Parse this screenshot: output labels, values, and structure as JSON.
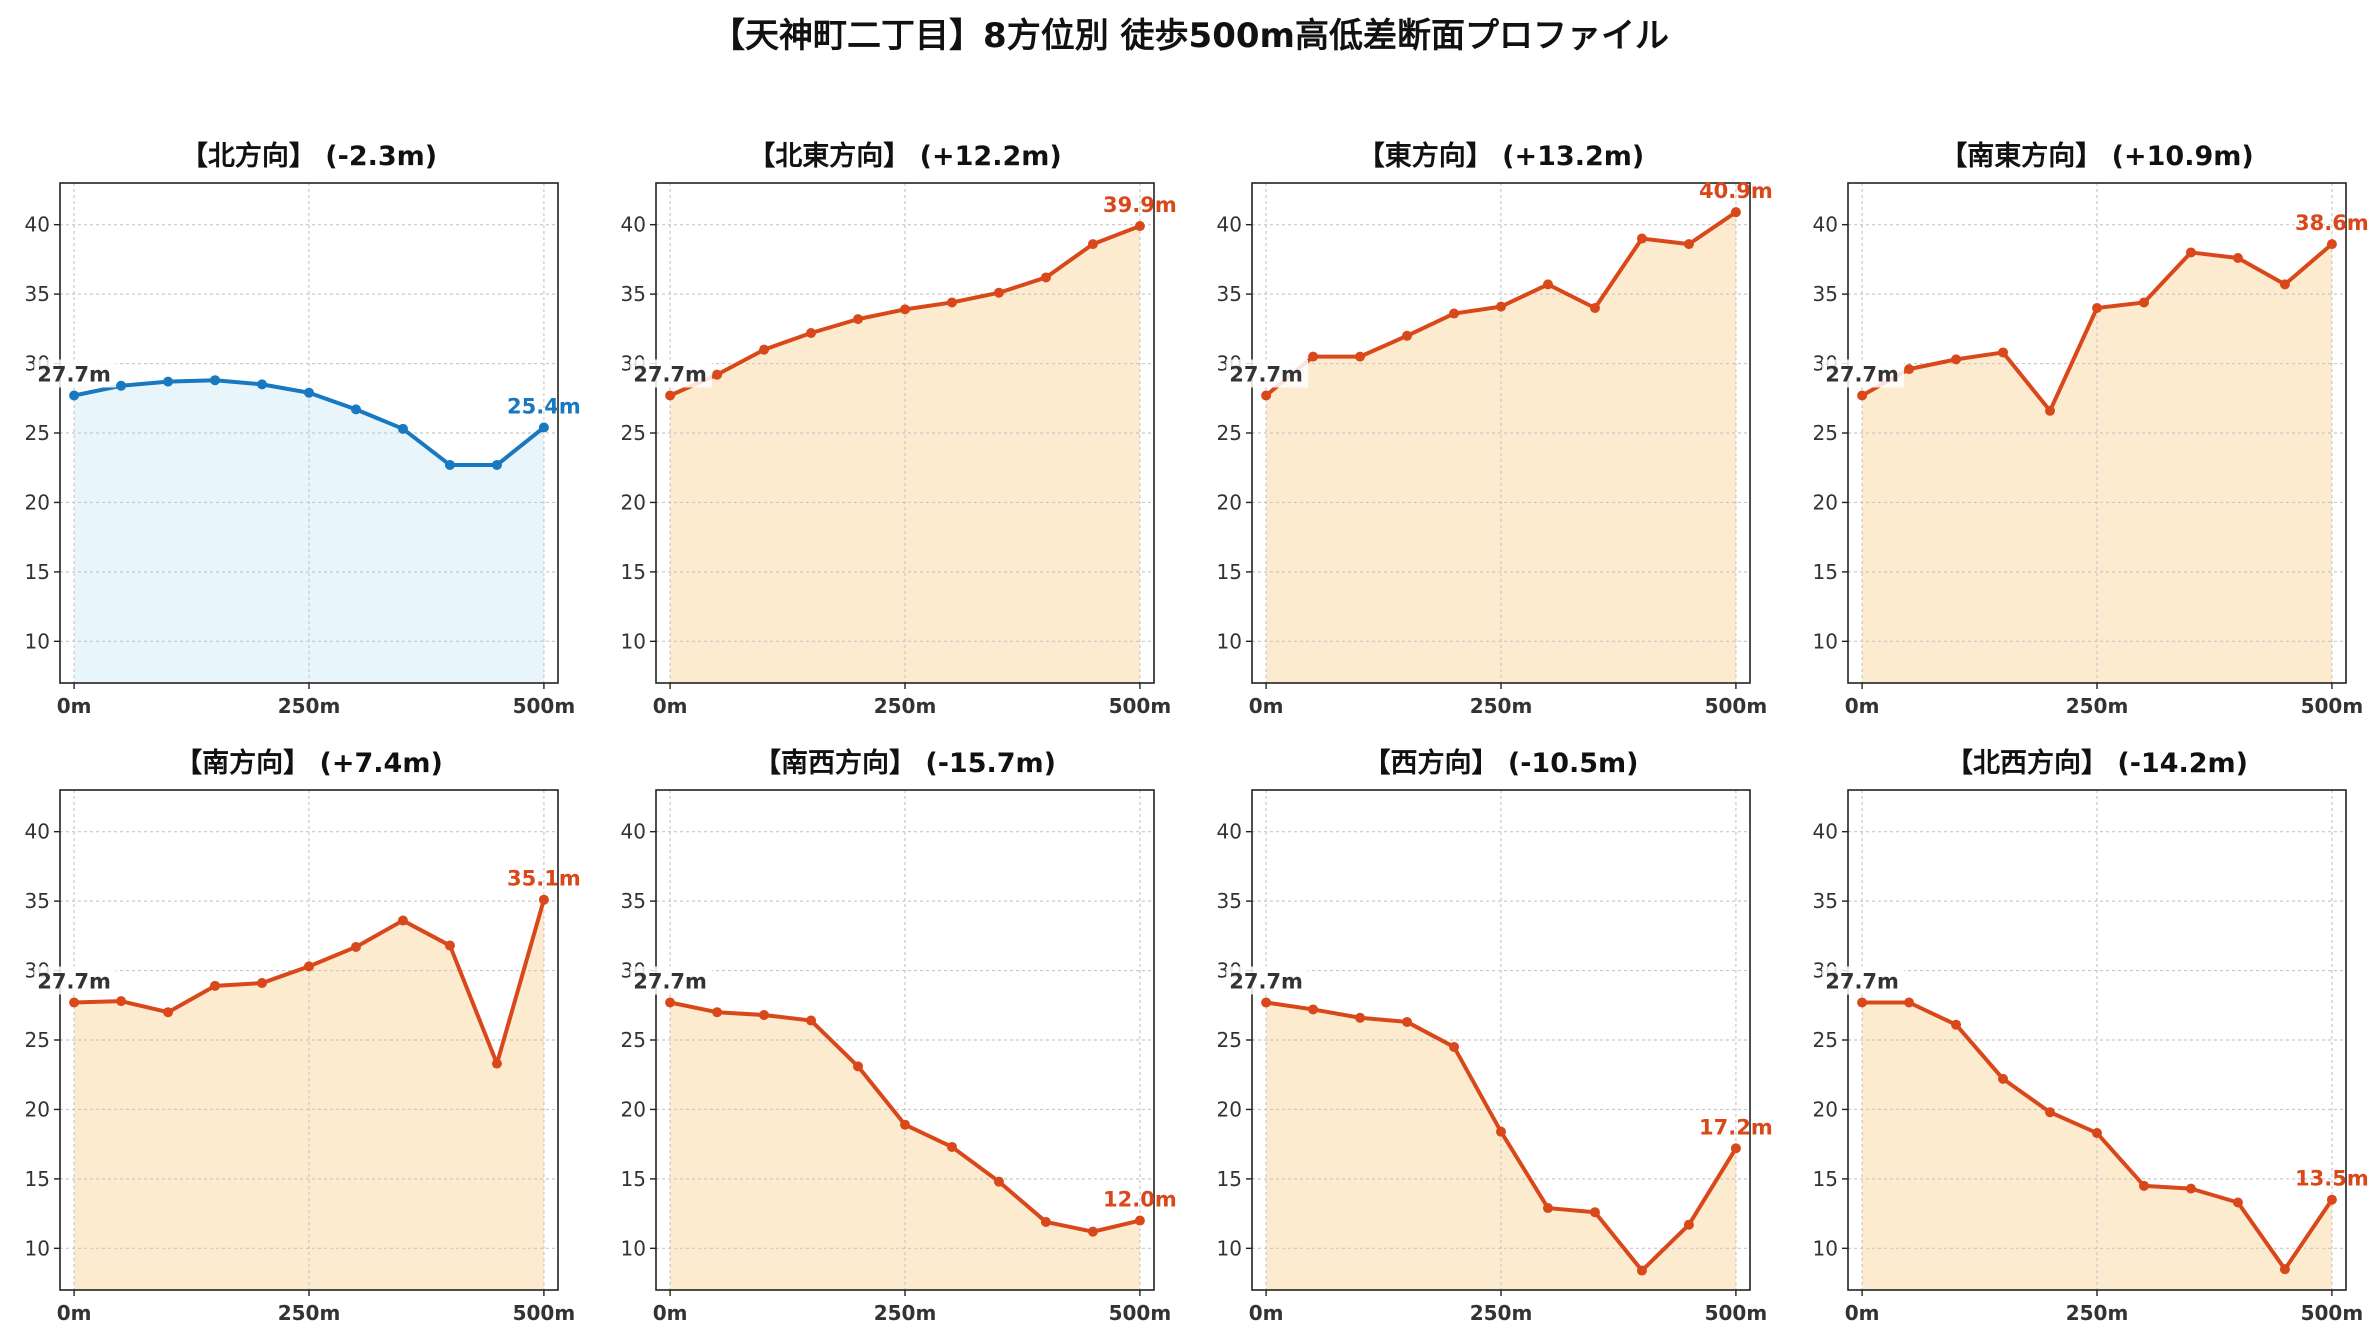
{
  "title": "【天神町二丁目】8方位別 徒歩500m高低差断面プロファイル",
  "colors": {
    "rise_line": "#d9481a",
    "rise_fill": "#fdebd0",
    "fall_line": "#1878c0",
    "fall_fill": "#e8f6fb",
    "grid": "#c8c8c8",
    "axis": "#222222"
  },
  "chart_data": [
    {
      "type": "area",
      "title": "【北方向】 (-2.3m)",
      "style": "fall",
      "x": [
        0,
        50,
        100,
        150,
        200,
        250,
        300,
        350,
        400,
        450,
        500
      ],
      "y": [
        27.7,
        28.4,
        28.7,
        28.8,
        28.5,
        27.9,
        26.7,
        25.3,
        22.7,
        22.7,
        25.4
      ],
      "start_label": "27.7m",
      "end_label": "25.4m",
      "xticks": [
        "0m",
        "250m",
        "500m"
      ],
      "yticks": [
        10,
        15,
        20,
        25,
        30,
        35,
        40
      ],
      "xlim": [
        -15,
        515
      ],
      "ylim": [
        7,
        43
      ],
      "grid": true
    },
    {
      "type": "area",
      "title": "【北東方向】 (+12.2m)",
      "style": "rise",
      "x": [
        0,
        50,
        100,
        150,
        200,
        250,
        300,
        350,
        400,
        450,
        500
      ],
      "y": [
        27.7,
        29.2,
        31.0,
        32.2,
        33.2,
        33.9,
        34.4,
        35.1,
        36.2,
        38.6,
        39.9
      ],
      "start_label": "27.7m",
      "end_label": "39.9m",
      "xticks": [
        "0m",
        "250m",
        "500m"
      ],
      "yticks": [
        10,
        15,
        20,
        25,
        30,
        35,
        40
      ],
      "xlim": [
        -15,
        515
      ],
      "ylim": [
        7,
        43
      ],
      "grid": true
    },
    {
      "type": "area",
      "title": "【東方向】 (+13.2m)",
      "style": "rise",
      "x": [
        0,
        50,
        100,
        150,
        200,
        250,
        300,
        350,
        400,
        450,
        500
      ],
      "y": [
        27.7,
        30.5,
        30.5,
        32.0,
        33.6,
        34.1,
        35.7,
        34.0,
        39.0,
        38.6,
        40.9
      ],
      "start_label": "27.7m",
      "end_label": "40.9m",
      "xticks": [
        "0m",
        "250m",
        "500m"
      ],
      "yticks": [
        10,
        15,
        20,
        25,
        30,
        35,
        40
      ],
      "xlim": [
        -15,
        515
      ],
      "ylim": [
        7,
        43
      ],
      "grid": true
    },
    {
      "type": "area",
      "title": "【南東方向】 (+10.9m)",
      "style": "rise",
      "x": [
        0,
        50,
        100,
        150,
        200,
        250,
        300,
        350,
        400,
        450,
        500
      ],
      "y": [
        27.7,
        29.6,
        30.3,
        30.8,
        26.6,
        34.0,
        34.4,
        38.0,
        37.6,
        35.7,
        38.6
      ],
      "start_label": "27.7m",
      "end_label": "38.6m",
      "xticks": [
        "0m",
        "250m",
        "500m"
      ],
      "yticks": [
        10,
        15,
        20,
        25,
        30,
        35,
        40
      ],
      "xlim": [
        -15,
        515
      ],
      "ylim": [
        7,
        43
      ],
      "grid": true
    },
    {
      "type": "area",
      "title": "【南方向】 (+7.4m)",
      "style": "rise",
      "x": [
        0,
        50,
        100,
        150,
        200,
        250,
        300,
        350,
        400,
        450,
        500
      ],
      "y": [
        27.7,
        27.8,
        27.0,
        28.9,
        29.1,
        30.3,
        31.7,
        33.6,
        31.8,
        23.3,
        35.1
      ],
      "start_label": "27.7m",
      "end_label": "35.1m",
      "xticks": [
        "0m",
        "250m",
        "500m"
      ],
      "yticks": [
        10,
        15,
        20,
        25,
        30,
        35,
        40
      ],
      "xlim": [
        -15,
        515
      ],
      "ylim": [
        7,
        43
      ],
      "grid": true
    },
    {
      "type": "area",
      "title": "【南西方向】 (-15.7m)",
      "style": "rise",
      "x": [
        0,
        50,
        100,
        150,
        200,
        250,
        300,
        350,
        400,
        450,
        500
      ],
      "y": [
        27.7,
        27.0,
        26.8,
        26.4,
        23.1,
        18.9,
        17.3,
        14.8,
        11.9,
        11.2,
        12.0
      ],
      "start_label": "27.7m",
      "end_label": "12.0m",
      "xticks": [
        "0m",
        "250m",
        "500m"
      ],
      "yticks": [
        10,
        15,
        20,
        25,
        30,
        35,
        40
      ],
      "xlim": [
        -15,
        515
      ],
      "ylim": [
        7,
        43
      ],
      "grid": true
    },
    {
      "type": "area",
      "title": "【西方向】 (-10.5m)",
      "style": "rise",
      "x": [
        0,
        50,
        100,
        150,
        200,
        250,
        300,
        350,
        400,
        450,
        500
      ],
      "y": [
        27.7,
        27.2,
        26.6,
        26.3,
        24.5,
        18.4,
        12.9,
        12.6,
        8.4,
        11.7,
        17.2
      ],
      "start_label": "27.7m",
      "end_label": "17.2m",
      "xticks": [
        "0m",
        "250m",
        "500m"
      ],
      "yticks": [
        10,
        15,
        20,
        25,
        30,
        35,
        40
      ],
      "xlim": [
        -15,
        515
      ],
      "ylim": [
        7,
        43
      ],
      "grid": true
    },
    {
      "type": "area",
      "title": "【北西方向】 (-14.2m)",
      "style": "rise",
      "x": [
        0,
        50,
        100,
        150,
        200,
        250,
        300,
        350,
        400,
        450,
        500
      ],
      "y": [
        27.7,
        27.7,
        26.1,
        22.2,
        19.8,
        18.3,
        14.5,
        14.3,
        13.3,
        8.5,
        13.5
      ],
      "start_label": "27.7m",
      "end_label": "13.5m",
      "xticks": [
        "0m",
        "250m",
        "500m"
      ],
      "yticks": [
        10,
        15,
        20,
        25,
        30,
        35,
        40
      ],
      "xlim": [
        -15,
        515
      ],
      "ylim": [
        7,
        43
      ],
      "grid": true
    }
  ]
}
